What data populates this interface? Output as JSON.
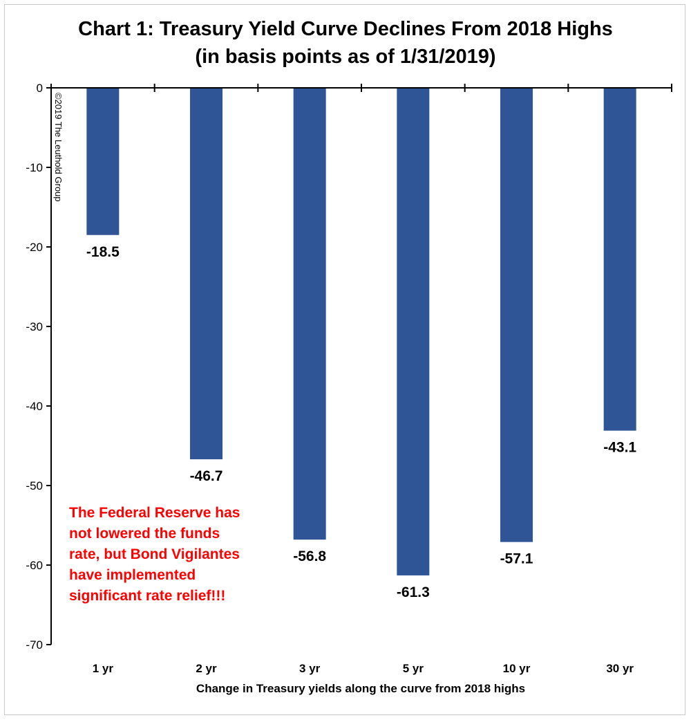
{
  "chart_data": {
    "type": "bar",
    "title_lines": [
      "Chart 1: Treasury Yield Curve Declines From 2018 Highs",
      "(in basis points as of 1/31/2019)"
    ],
    "categories": [
      "1 yr",
      "2 yr",
      "3 yr",
      "5 yr",
      "10 yr",
      "30 yr"
    ],
    "values": [
      -18.5,
      -46.7,
      -56.8,
      -61.3,
      -57.1,
      -43.1
    ],
    "data_labels": [
      "-18.5",
      "-46.7",
      "-56.8",
      "-61.3",
      "-57.1",
      "-43.1"
    ],
    "xlabel": "Change in Treasury yields along the curve from 2018 highs",
    "ylabel": "",
    "ylim": [
      -70,
      0
    ],
    "yticks": [
      0,
      -10,
      -20,
      -30,
      -40,
      -50,
      -60,
      -70
    ],
    "grid": false,
    "bar_color": "#2f5597",
    "annotation_lines": [
      "The Federal Reserve has",
      "not lowered the funds",
      "rate, but Bond Vigilantes",
      "have implemented",
      "significant rate relief!!!"
    ],
    "annotation_color": "#ff0000",
    "copyright": "©2019 The Leuthold Group"
  }
}
